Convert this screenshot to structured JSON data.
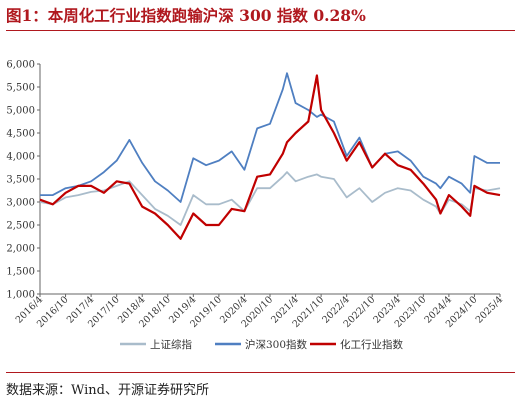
{
  "figure": {
    "title": "图1：本周化工行业指数跑输沪深 300 指数 0.28%",
    "source": "数据来源：Wind、开源证券研究所"
  },
  "colors": {
    "title": "#b0181e",
    "sse": "#a9bccb",
    "hs300": "#4f7fc1",
    "chem": "#c00000"
  },
  "chart_data": {
    "type": "line",
    "ylim": [
      1000,
      6000
    ],
    "yticks": [
      1000,
      1500,
      2000,
      2500,
      3000,
      3500,
      4000,
      4500,
      5000,
      5500,
      6000
    ],
    "ytick_labels": [
      "1,000",
      "1,500",
      "2,000",
      "2,500",
      "3,000",
      "3,500",
      "4,000",
      "4,500",
      "5,000",
      "5,500",
      "6,000"
    ],
    "x_labels": [
      "2016/4",
      "2016/10",
      "2017/4",
      "2017/10",
      "2018/4",
      "2018/10",
      "2019/4",
      "2019/10",
      "2020/4",
      "2020/10",
      "2021/4",
      "2021/10",
      "2022/4",
      "2022/10",
      "2023/4",
      "2023/10",
      "2024/4",
      "2024/10",
      "2025/4"
    ],
    "x_start": "2016/4",
    "x_end": "2025/4",
    "legend_position": "bottom",
    "grid": false,
    "x": [
      "2016/4",
      "2016/7",
      "2016/10",
      "2017/1",
      "2017/4",
      "2017/7",
      "2017/10",
      "2018/1",
      "2018/4",
      "2018/7",
      "2018/10",
      "2019/1",
      "2019/4",
      "2019/7",
      "2019/10",
      "2020/1",
      "2020/4",
      "2020/7",
      "2020/10",
      "2021/1",
      "2021/2",
      "2021/4",
      "2021/7",
      "2021/9",
      "2021/10",
      "2022/1",
      "2022/4",
      "2022/7",
      "2022/10",
      "2023/1",
      "2023/4",
      "2023/7",
      "2023/10",
      "2024/1",
      "2024/2",
      "2024/4",
      "2024/7",
      "2024/9",
      "2024/10",
      "2025/1",
      "2025/4"
    ],
    "series": [
      {
        "name": "上证综指",
        "color": "#a9bccb",
        "values": [
          3000,
          2950,
          3100,
          3150,
          3220,
          3250,
          3350,
          3450,
          3150,
          2850,
          2700,
          2500,
          3150,
          2950,
          2950,
          3050,
          2800,
          3300,
          3300,
          3550,
          3650,
          3450,
          3550,
          3600,
          3550,
          3500,
          3100,
          3300,
          3000,
          3200,
          3300,
          3250,
          3050,
          2900,
          2750,
          3050,
          2950,
          2800,
          3300,
          3250,
          3300
        ]
      },
      {
        "name": "沪深300指数",
        "color": "#4f7fc1",
        "values": [
          3150,
          3150,
          3300,
          3350,
          3450,
          3650,
          3900,
          4350,
          3850,
          3450,
          3250,
          3000,
          3950,
          3800,
          3900,
          4100,
          3700,
          4600,
          4700,
          5450,
          5800,
          5150,
          5000,
          4850,
          4900,
          4750,
          4000,
          4400,
          3750,
          4050,
          4100,
          3900,
          3550,
          3400,
          3300,
          3550,
          3400,
          3200,
          4000,
          3850,
          3850
        ]
      },
      {
        "name": "化工行业指数",
        "color": "#c00000",
        "values": [
          3050,
          2950,
          3200,
          3350,
          3350,
          3200,
          3450,
          3400,
          2900,
          2750,
          2500,
          2200,
          2750,
          2500,
          2500,
          2850,
          2800,
          3550,
          3600,
          4050,
          4300,
          4500,
          4750,
          5750,
          5000,
          4500,
          3900,
          4300,
          3750,
          4050,
          3800,
          3700,
          3400,
          3050,
          2750,
          3150,
          2900,
          2700,
          3350,
          3200,
          3150
        ]
      }
    ]
  }
}
